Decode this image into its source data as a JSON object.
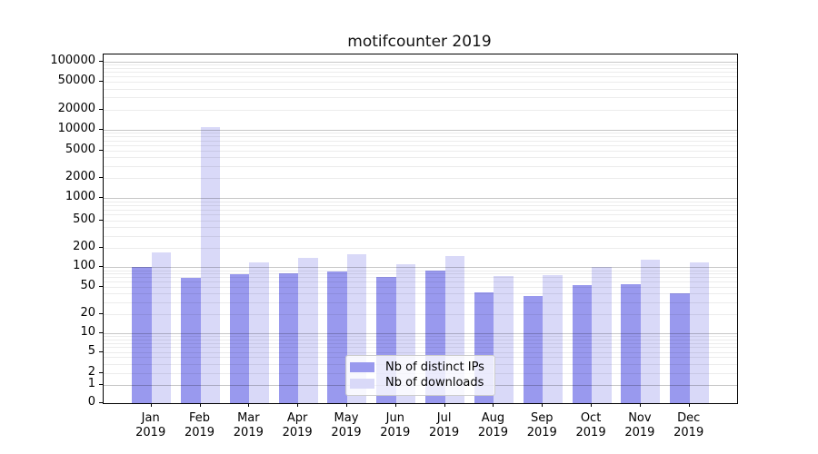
{
  "chart_data": {
    "type": "bar",
    "title": "motifcounter 2019",
    "x": [
      "Jan",
      "Feb",
      "Mar",
      "Apr",
      "May",
      "Jun",
      "Jul",
      "Aug",
      "Sep",
      "Oct",
      "Nov",
      "Dec"
    ],
    "year": "2019",
    "series": [
      {
        "name": "Nb of distinct IPs",
        "color": "#9999ee",
        "values": [
          100,
          68,
          78,
          82,
          86,
          71,
          90,
          42,
          37,
          53,
          55,
          40
        ]
      },
      {
        "name": "Nb of downloads",
        "color": "#d9d9f8",
        "values": [
          170,
          11000,
          120,
          140,
          160,
          110,
          150,
          74,
          76,
          100,
          133,
          120
        ]
      }
    ],
    "yscale": "symlog",
    "y_ticks": [
      0,
      1,
      2,
      5,
      10,
      20,
      50,
      100,
      200,
      500,
      1000,
      2000,
      5000,
      10000,
      20000,
      50000,
      100000
    ],
    "ylim": [
      0,
      100000
    ],
    "grid": "horizontal log minor + major gridlines",
    "legend_position": "lower center"
  },
  "colors": {
    "bar_distinct_ips": "#9999ee",
    "bar_downloads": "#d9d9f8",
    "grid_minor": "rgba(0,0,0,0.075)",
    "grid_major": "rgba(0,0,0,0.22)",
    "axis": "#000000",
    "background": "#ffffff"
  }
}
